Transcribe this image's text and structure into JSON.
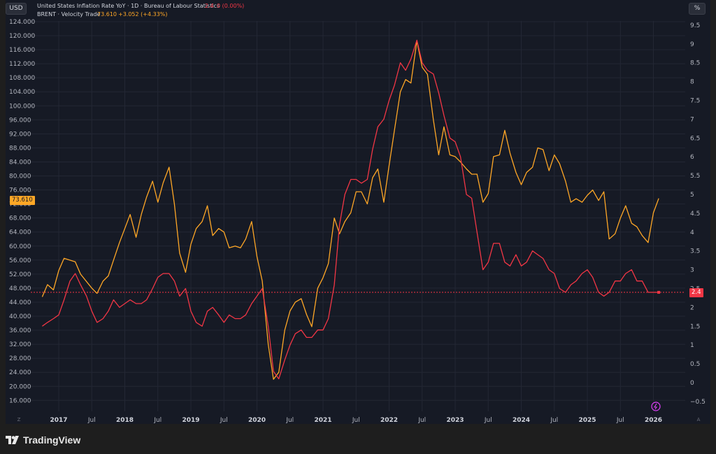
{
  "currency_button": "USD",
  "percent_button": "%",
  "scale_mode_left": "Z",
  "scale_mode_right": "A",
  "legend": [
    {
      "name": "United States Inflation Rate YoY · 1D · Bureau of Labour Statistics",
      "value": "2.4",
      "change": "0 (0.00%)",
      "color": "#f23645"
    },
    {
      "name": "BRENT · Velocity Trade",
      "value": "73.610",
      "change": "+3.052 (+4.33%)",
      "color": "#ffa726"
    }
  ],
  "price_labels": {
    "brent": "73.610",
    "inflation": "2.4"
  },
  "branding": "TradingView",
  "chart_data": {
    "type": "line",
    "x_ticks": [
      "2017",
      "Jul",
      "2018",
      "Jul",
      "2019",
      "Jul",
      "2020",
      "Jul",
      "2021",
      "Jul",
      "2022",
      "Jul",
      "2023",
      "Jul",
      "2024",
      "Jul",
      "2025",
      "Jul",
      "2026"
    ],
    "y_left": {
      "min": 16,
      "max": 124,
      "ticks": [
        "124.000",
        "120.000",
        "116.000",
        "112.000",
        "108.000",
        "104.000",
        "100.000",
        "96.000",
        "92.000",
        "88.000",
        "84.000",
        "80.000",
        "76.000",
        "72.000",
        "68.000",
        "64.000",
        "60.000",
        "56.000",
        "52.000",
        "48.000",
        "44.000",
        "40.000",
        "36.000",
        "32.000",
        "28.000",
        "24.000",
        "20.000",
        "16.000"
      ]
    },
    "y_right": {
      "ticks": [
        "9.5",
        "9",
        "8.5",
        "8",
        "7.5",
        "7",
        "6.5",
        "6",
        "5.5",
        "5",
        "4.5",
        "4",
        "3.5",
        "3",
        "2.5",
        "2",
        "1.5",
        "1",
        "0.5",
        "0",
        "−0.5"
      ]
    },
    "series": [
      {
        "name": "BRENT · Velocity Trade",
        "color": "#ffa726",
        "axis": "left",
        "values": [
          [
            2016.75,
            45.5
          ],
          [
            2016.83,
            49
          ],
          [
            2016.92,
            47.5
          ],
          [
            2017.0,
            53
          ],
          [
            2017.08,
            56.5
          ],
          [
            2017.25,
            55.5
          ],
          [
            2017.33,
            52
          ],
          [
            2017.5,
            48
          ],
          [
            2017.58,
            46.5
          ],
          [
            2017.67,
            50
          ],
          [
            2017.75,
            51.5
          ],
          [
            2017.83,
            56
          ],
          [
            2017.92,
            61
          ],
          [
            2018.0,
            65
          ],
          [
            2018.08,
            69
          ],
          [
            2018.17,
            62.5
          ],
          [
            2018.25,
            69
          ],
          [
            2018.33,
            74
          ],
          [
            2018.42,
            78.5
          ],
          [
            2018.5,
            72.5
          ],
          [
            2018.58,
            78
          ],
          [
            2018.67,
            82.5
          ],
          [
            2018.75,
            72
          ],
          [
            2018.83,
            58
          ],
          [
            2018.92,
            52.5
          ],
          [
            2019.0,
            60.5
          ],
          [
            2019.08,
            65
          ],
          [
            2019.17,
            67
          ],
          [
            2019.25,
            71.5
          ],
          [
            2019.33,
            63
          ],
          [
            2019.42,
            65
          ],
          [
            2019.5,
            64
          ],
          [
            2019.58,
            59.5
          ],
          [
            2019.67,
            60
          ],
          [
            2019.75,
            59.5
          ],
          [
            2019.83,
            62
          ],
          [
            2019.92,
            67
          ],
          [
            2020.0,
            57
          ],
          [
            2020.08,
            50
          ],
          [
            2020.17,
            32
          ],
          [
            2020.25,
            22
          ],
          [
            2020.33,
            24
          ],
          [
            2020.42,
            36
          ],
          [
            2020.5,
            41.5
          ],
          [
            2020.58,
            44
          ],
          [
            2020.67,
            45
          ],
          [
            2020.75,
            40.5
          ],
          [
            2020.83,
            37
          ],
          [
            2020.92,
            48
          ],
          [
            2021.0,
            51
          ],
          [
            2021.08,
            55
          ],
          [
            2021.17,
            68
          ],
          [
            2021.25,
            63.5
          ],
          [
            2021.33,
            67
          ],
          [
            2021.42,
            69.5
          ],
          [
            2021.5,
            75.5
          ],
          [
            2021.58,
            75.5
          ],
          [
            2021.67,
            72
          ],
          [
            2021.75,
            79.5
          ],
          [
            2021.83,
            82
          ],
          [
            2021.92,
            72.5
          ],
          [
            2022.0,
            83
          ],
          [
            2022.08,
            93
          ],
          [
            2022.17,
            104
          ],
          [
            2022.25,
            107.5
          ],
          [
            2022.33,
            106.5
          ],
          [
            2022.42,
            118.5
          ],
          [
            2022.5,
            111
          ],
          [
            2022.58,
            109
          ],
          [
            2022.67,
            96
          ],
          [
            2022.75,
            86
          ],
          [
            2022.83,
            94
          ],
          [
            2022.92,
            86
          ],
          [
            2023.0,
            85.5
          ],
          [
            2023.08,
            84
          ],
          [
            2023.17,
            82
          ],
          [
            2023.25,
            80.5
          ],
          [
            2023.33,
            80.5
          ],
          [
            2023.42,
            72.5
          ],
          [
            2023.5,
            75
          ],
          [
            2023.58,
            85.5
          ],
          [
            2023.67,
            86
          ],
          [
            2023.75,
            93
          ],
          [
            2023.83,
            86.5
          ],
          [
            2023.92,
            81
          ],
          [
            2024.0,
            77.5
          ],
          [
            2024.08,
            81
          ],
          [
            2024.17,
            82.5
          ],
          [
            2024.25,
            88
          ],
          [
            2024.33,
            87.5
          ],
          [
            2024.42,
            81.5
          ],
          [
            2024.5,
            86
          ],
          [
            2024.58,
            83.5
          ],
          [
            2024.67,
            78.5
          ],
          [
            2024.75,
            72.5
          ],
          [
            2024.83,
            73.5
          ],
          [
            2024.92,
            72.5
          ],
          [
            2025.0,
            74.5
          ],
          [
            2025.08,
            76
          ],
          [
            2025.17,
            73
          ],
          [
            2025.25,
            75.5
          ],
          [
            2025.33,
            62
          ],
          [
            2025.42,
            63.5
          ],
          [
            2025.5,
            68
          ],
          [
            2025.58,
            71.5
          ],
          [
            2025.67,
            66.5
          ],
          [
            2025.75,
            65.5
          ],
          [
            2025.83,
            63
          ],
          [
            2025.92,
            61
          ],
          [
            2026.0,
            69.5
          ],
          [
            2026.08,
            73.6
          ]
        ]
      },
      {
        "name": "United States Inflation Rate YoY",
        "color": "#f23645",
        "axis": "right",
        "values": [
          [
            2016.75,
            1.5
          ],
          [
            2016.83,
            1.6
          ],
          [
            2016.92,
            1.7
          ],
          [
            2017.0,
            1.8
          ],
          [
            2017.08,
            2.2
          ],
          [
            2017.17,
            2.7
          ],
          [
            2017.25,
            2.9
          ],
          [
            2017.33,
            2.6
          ],
          [
            2017.42,
            2.3
          ],
          [
            2017.5,
            1.9
          ],
          [
            2017.58,
            1.6
          ],
          [
            2017.67,
            1.7
          ],
          [
            2017.75,
            1.9
          ],
          [
            2017.83,
            2.2
          ],
          [
            2017.92,
            2.0
          ],
          [
            2018.0,
            2.1
          ],
          [
            2018.08,
            2.2
          ],
          [
            2018.17,
            2.1
          ],
          [
            2018.25,
            2.1
          ],
          [
            2018.33,
            2.2
          ],
          [
            2018.42,
            2.5
          ],
          [
            2018.5,
            2.8
          ],
          [
            2018.58,
            2.9
          ],
          [
            2018.67,
            2.9
          ],
          [
            2018.75,
            2.7
          ],
          [
            2018.83,
            2.3
          ],
          [
            2018.92,
            2.5
          ],
          [
            2019.0,
            1.9
          ],
          [
            2019.08,
            1.6
          ],
          [
            2019.17,
            1.5
          ],
          [
            2019.25,
            1.9
          ],
          [
            2019.33,
            2.0
          ],
          [
            2019.42,
            1.8
          ],
          [
            2019.5,
            1.6
          ],
          [
            2019.58,
            1.8
          ],
          [
            2019.67,
            1.7
          ],
          [
            2019.75,
            1.7
          ],
          [
            2019.83,
            1.8
          ],
          [
            2019.92,
            2.1
          ],
          [
            2020.0,
            2.3
          ],
          [
            2020.08,
            2.5
          ],
          [
            2020.17,
            1.5
          ],
          [
            2020.25,
            0.3
          ],
          [
            2020.33,
            0.1
          ],
          [
            2020.42,
            0.6
          ],
          [
            2020.5,
            1.0
          ],
          [
            2020.58,
            1.3
          ],
          [
            2020.67,
            1.4
          ],
          [
            2020.75,
            1.2
          ],
          [
            2020.83,
            1.2
          ],
          [
            2020.92,
            1.4
          ],
          [
            2021.0,
            1.4
          ],
          [
            2021.08,
            1.7
          ],
          [
            2021.17,
            2.6
          ],
          [
            2021.25,
            4.2
          ],
          [
            2021.33,
            5.0
          ],
          [
            2021.42,
            5.4
          ],
          [
            2021.5,
            5.4
          ],
          [
            2021.58,
            5.3
          ],
          [
            2021.67,
            5.4
          ],
          [
            2021.75,
            6.2
          ],
          [
            2021.83,
            6.8
          ],
          [
            2021.92,
            7.0
          ],
          [
            2022.0,
            7.5
          ],
          [
            2022.08,
            7.9
          ],
          [
            2022.17,
            8.5
          ],
          [
            2022.25,
            8.3
          ],
          [
            2022.33,
            8.6
          ],
          [
            2022.42,
            9.1
          ],
          [
            2022.5,
            8.5
          ],
          [
            2022.58,
            8.3
          ],
          [
            2022.67,
            8.2
          ],
          [
            2022.75,
            7.7
          ],
          [
            2022.83,
            7.1
          ],
          [
            2022.92,
            6.5
          ],
          [
            2023.0,
            6.4
          ],
          [
            2023.08,
            6.0
          ],
          [
            2023.17,
            5.0
          ],
          [
            2023.25,
            4.9
          ],
          [
            2023.33,
            4.0
          ],
          [
            2023.42,
            3.0
          ],
          [
            2023.5,
            3.2
          ],
          [
            2023.58,
            3.7
          ],
          [
            2023.67,
            3.7
          ],
          [
            2023.75,
            3.2
          ],
          [
            2023.83,
            3.1
          ],
          [
            2023.92,
            3.4
          ],
          [
            2024.0,
            3.1
          ],
          [
            2024.08,
            3.2
          ],
          [
            2024.17,
            3.5
          ],
          [
            2024.25,
            3.4
          ],
          [
            2024.33,
            3.3
          ],
          [
            2024.42,
            3.0
          ],
          [
            2024.5,
            2.9
          ],
          [
            2024.58,
            2.5
          ],
          [
            2024.67,
            2.4
          ],
          [
            2024.75,
            2.6
          ],
          [
            2024.83,
            2.7
          ],
          [
            2024.92,
            2.9
          ],
          [
            2025.0,
            3.0
          ],
          [
            2025.08,
            2.8
          ],
          [
            2025.17,
            2.4
          ],
          [
            2025.25,
            2.3
          ],
          [
            2025.33,
            2.4
          ],
          [
            2025.42,
            2.7
          ],
          [
            2025.5,
            2.7
          ],
          [
            2025.58,
            2.9
          ],
          [
            2025.67,
            3.0
          ],
          [
            2025.75,
            2.7
          ],
          [
            2025.83,
            2.7
          ],
          [
            2025.92,
            2.4
          ],
          [
            2026.0,
            2.4
          ],
          [
            2026.08,
            2.4
          ]
        ]
      }
    ]
  }
}
